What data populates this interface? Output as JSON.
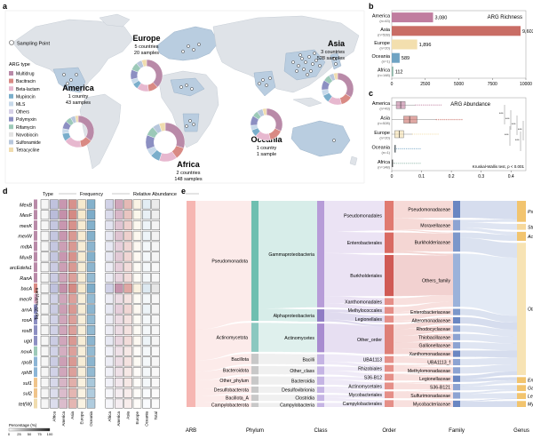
{
  "panel_letters": {
    "a": "a",
    "b": "b",
    "c": "c",
    "d": "d",
    "e": "e"
  },
  "colors": {
    "Multidrug": "#b98aa8",
    "Bacitracin": "#d98a84",
    "Beta-lactam": "#e7b8cf",
    "Mupirocin": "#7aaecb",
    "MLS": "#c7d9ea",
    "Others": "#d7d1e8",
    "Polymyxin": "#8c8fc2",
    "Rifamycin": "#9cc9b8",
    "Novobiocin": "#e3e3e3",
    "Sulfonamide": "#b8c7dc",
    "Tetracycline": "#f0dcae"
  },
  "map": {
    "sampling_point_label": "Sampling Point",
    "legend_title": "ARG type",
    "legend": [
      "Multidrug",
      "Bacitracin",
      "Beta-lactam",
      "Mupirocin",
      "MLS",
      "Others",
      "Polymyxin",
      "Rifamycin",
      "Novobiocin",
      "Sulfonamide",
      "Tetracycline"
    ],
    "regions": [
      {
        "name": "America",
        "line1": "1 country",
        "line2": "43 samples"
      },
      {
        "name": "Europe",
        "line1": "5 countries",
        "line2": "20 samples"
      },
      {
        "name": "Africa",
        "line1": "2 countries",
        "line2": "148 samples"
      },
      {
        "name": "Oceania",
        "line1": "1 country",
        "line2": "1 sample"
      },
      {
        "name": "Asia",
        "line1": "3 countries",
        "line2": "528 samples"
      }
    ]
  },
  "chart_data": [
    {
      "type": "bar",
      "orientation": "horizontal",
      "title": "ARG Richness",
      "categories": [
        "America",
        "Asia",
        "Europe",
        "Oceania",
        "Africa"
      ],
      "category_sub": [
        "(n=43)",
        "(n=528)",
        "(n=20)",
        "(n=1)",
        "(n=148)"
      ],
      "values": [
        3080,
        9603,
        1896,
        589,
        112
      ],
      "value_labels": [
        "3,080",
        "9,603",
        "1,896",
        "589",
        "112"
      ],
      "bar_colors": [
        "#c07d9f",
        "#c96d65",
        "#f3dfae",
        "#6fa3c3",
        "#8bb5a6"
      ],
      "xlim": [
        0,
        10000
      ],
      "xticks": [
        "0",
        "2500",
        "5000",
        "7500",
        "10000"
      ]
    },
    {
      "type": "box",
      "orientation": "horizontal",
      "title": "ARG Abundance",
      "categories": [
        "America",
        "Asia",
        "Europe",
        "Oceania",
        "Africa"
      ],
      "category_sub": [
        "(n=43)",
        "(n=528)",
        "(n=20)",
        "(n=1)",
        "(n=148)"
      ],
      "box_colors": [
        "#c07d9f",
        "#c96d65",
        "#f3dfae",
        "#6fa3c3",
        "#8bb5a6"
      ],
      "boxes": [
        {
          "min": 0.0,
          "q1": 0.015,
          "median": 0.03,
          "q3": 0.045,
          "max": 0.08
        },
        {
          "min": 0.0,
          "q1": 0.04,
          "median": 0.06,
          "q3": 0.085,
          "max": 0.15
        },
        {
          "min": 0.0,
          "q1": 0.01,
          "median": 0.025,
          "q3": 0.04,
          "max": 0.07
        },
        {
          "min": 0.01,
          "q1": 0.01,
          "median": 0.01,
          "q3": 0.01,
          "max": 0.01
        },
        {
          "min": 0.0,
          "q1": 0.001,
          "median": 0.002,
          "q3": 0.004,
          "max": 0.01
        }
      ],
      "xlim": [
        0,
        0.45
      ],
      "xticks": [
        "0",
        "0.1",
        "0.2",
        "0.3",
        "0.4"
      ],
      "significance": [
        "***",
        "***",
        "***",
        "***",
        "***",
        "***"
      ],
      "annotation": "Kruskal-Wallis test, p < 0.001"
    },
    {
      "type": "heatmap",
      "headers": {
        "type": "Type",
        "frequency": "Frequency",
        "relative": "Relative Abundance"
      },
      "rows": [
        "MexB",
        "MexF",
        "mexK",
        "mexW",
        "mdtA",
        "MuxB",
        "arcEdefa1",
        "RanA",
        "bacA",
        "mecR",
        "arnA",
        "rosA",
        "rosB",
        "ugd",
        "novA",
        "rpoB",
        "rphB",
        "sul1",
        "sul2",
        "tet(W)"
      ],
      "row_types": [
        "Multidrug",
        "Multidrug",
        "Multidrug",
        "Multidrug",
        "Multidrug",
        "Multidrug",
        "Multidrug",
        "Multidrug",
        "Bacitracin",
        "Beta-lactam",
        "Polymyxin",
        "Polymyxin",
        "Polymyxin",
        "Polymyxin",
        "Novobiocin",
        "Rifamycin",
        "Rifamycin",
        "Sulfonamide",
        "Sulfonamide",
        "Tetracycline"
      ],
      "type_group_label": "Top 20 subtypes",
      "columns": [
        "Africa",
        "America",
        "Asia",
        "Europe",
        "Oceania",
        "Africa",
        "America",
        "Asia",
        "Europe",
        "Oceania",
        "Total"
      ],
      "frequency": [
        [
          0.55,
          0.7,
          0.75,
          0.6,
          0.85
        ],
        [
          0.6,
          0.75,
          0.8,
          0.6,
          0.9
        ],
        [
          0.5,
          0.7,
          0.75,
          0.55,
          0.85
        ],
        [
          0.5,
          0.7,
          0.7,
          0.55,
          0.85
        ],
        [
          0.5,
          0.65,
          0.7,
          0.5,
          0.8
        ],
        [
          0.5,
          0.7,
          0.75,
          0.55,
          0.85
        ],
        [
          0.45,
          0.65,
          0.7,
          0.5,
          0.8
        ],
        [
          0.45,
          0.6,
          0.65,
          0.5,
          0.75
        ],
        [
          0.55,
          0.75,
          0.8,
          0.6,
          0.9
        ],
        [
          0.4,
          0.6,
          0.65,
          0.45,
          0.75
        ],
        [
          0.45,
          0.65,
          0.7,
          0.5,
          0.8
        ],
        [
          0.4,
          0.6,
          0.65,
          0.45,
          0.75
        ],
        [
          0.4,
          0.6,
          0.65,
          0.45,
          0.75
        ],
        [
          0.45,
          0.6,
          0.7,
          0.5,
          0.8
        ],
        [
          0.4,
          0.55,
          0.65,
          0.45,
          0.75
        ],
        [
          0.45,
          0.65,
          0.7,
          0.5,
          0.8
        ],
        [
          0.4,
          0.6,
          0.65,
          0.45,
          0.75
        ],
        [
          0.35,
          0.5,
          0.55,
          0.4,
          0.6
        ],
        [
          0.3,
          0.45,
          0.5,
          0.35,
          0.55
        ],
        [
          0.3,
          0.45,
          0.5,
          0.35,
          0.55
        ]
      ],
      "relative": [
        [
          0.1,
          0.15,
          0.12,
          0.08,
          0.05,
          0.1
        ],
        [
          0.08,
          0.12,
          0.1,
          0.06,
          0.04,
          0.08
        ],
        [
          0.06,
          0.1,
          0.08,
          0.05,
          0.03,
          0.06
        ],
        [
          0.05,
          0.1,
          0.08,
          0.05,
          0.03,
          0.06
        ],
        [
          0.05,
          0.08,
          0.07,
          0.04,
          0.02,
          0.05
        ],
        [
          0.05,
          0.09,
          0.07,
          0.04,
          0.02,
          0.05
        ],
        [
          0.04,
          0.08,
          0.06,
          0.03,
          0.02,
          0.04
        ],
        [
          0.04,
          0.07,
          0.06,
          0.03,
          0.02,
          0.04
        ],
        [
          0.1,
          0.18,
          0.15,
          0.1,
          0.06,
          0.12
        ],
        [
          0.04,
          0.06,
          0.05,
          0.03,
          0.02,
          0.04
        ],
        [
          0.05,
          0.08,
          0.07,
          0.04,
          0.03,
          0.05
        ],
        [
          0.04,
          0.06,
          0.05,
          0.03,
          0.02,
          0.04
        ],
        [
          0.04,
          0.06,
          0.05,
          0.03,
          0.02,
          0.04
        ],
        [
          0.05,
          0.07,
          0.06,
          0.04,
          0.03,
          0.05
        ],
        [
          0.03,
          0.05,
          0.04,
          0.02,
          0.02,
          0.03
        ],
        [
          0.04,
          0.06,
          0.05,
          0.03,
          0.02,
          0.04
        ],
        [
          0.03,
          0.05,
          0.04,
          0.02,
          0.02,
          0.03
        ],
        [
          0.03,
          0.04,
          0.04,
          0.02,
          0.02,
          0.03
        ],
        [
          0.02,
          0.03,
          0.03,
          0.02,
          0.01,
          0.02
        ],
        [
          0.02,
          0.03,
          0.03,
          0.02,
          0.01,
          0.02
        ]
      ],
      "scale_label": "Percentage (%)",
      "scale_ticks": [
        "0",
        "25",
        "50",
        "75",
        "100"
      ]
    },
    {
      "type": "sankey",
      "axis_labels": [
        "ARB",
        "Phylum",
        "Class",
        "Order",
        "Family",
        "Genus"
      ],
      "phylum": [
        "Pseudomonadota",
        "Actinomycetota",
        "Bacillota",
        "Bacteroidota",
        "Other_phylum",
        "Desulfobacterota",
        "Bacillota_A",
        "Campylobacterota"
      ],
      "class": [
        "Gammaproteobacteria",
        "Alphaproteobacteria",
        "Actinomycetes",
        "Bacilli",
        "Other_class",
        "Bacteroidia",
        "Desulfovibrionia",
        "Clostridia",
        "Campylobacteria"
      ],
      "order": [
        "Pseudomonadales",
        "Enterobacterales",
        "Burkholderiales",
        "Xanthomonadales",
        "Methylococcales",
        "Legionellales",
        "Other_order",
        "UBA1113",
        "Rhizobiales",
        "S36-B12",
        "Actinomycetales",
        "Mycobacteriales",
        "Campylobacterales"
      ],
      "family": [
        "Pseudomonadaceae",
        "Moraxellaceae",
        "Burkholderiaceae",
        "Others_family",
        "Enterobacteriaceae",
        "Alteromonadaceae",
        "Rhodocyclaceae",
        "Thiobacillaceae",
        "Gallionellaceae",
        "Xanthomonadaceae",
        "UBA1113_f",
        "Methylomonadaceae",
        "Legionellaceae",
        "S36-B121",
        "Sulfurimonadaceae",
        "Mycobacteriaceae"
      ],
      "genus": [
        "Pseudomonas_E",
        "Stutzerimonas",
        "Acinetobacter",
        "Other_genus",
        "Enterobacter",
        "Gallionella",
        "Legionella",
        "Mycobacterium"
      ]
    }
  ]
}
